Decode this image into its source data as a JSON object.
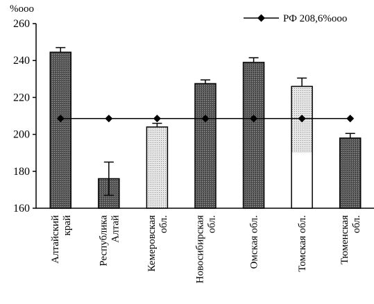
{
  "chart_data": {
    "type": "bar",
    "ylabel": "%ooo",
    "ylim": [
      160,
      260
    ],
    "yticks": [
      "160",
      "180",
      "200",
      "220",
      "240",
      "260"
    ],
    "categories": [
      [
        "Алтайский",
        "край"
      ],
      [
        "Республика",
        "Алтай"
      ],
      [
        "Кемеровская",
        "обл."
      ],
      [
        "Новосибирская",
        "обл."
      ],
      [
        "Омская обл."
      ],
      [
        "Томская обл."
      ],
      [
        "Тюменская",
        "обл."
      ]
    ],
    "series": [
      {
        "values": [
          244.5,
          176,
          204,
          227.5,
          239,
          226,
          198
        ],
        "errors": [
          2.5,
          9,
          2,
          2,
          2.5,
          4.5,
          2.5
        ],
        "fills": [
          "dark",
          "dark",
          "light",
          "dark",
          "dark",
          "light-white",
          "dark"
        ]
      },
      {
        "name": "РФ 208,6%ooo",
        "type": "line",
        "values": [
          208.6,
          208.6,
          208.6,
          208.6,
          208.6,
          208.6,
          208.6
        ]
      }
    ],
    "legend": {
      "position": "top-right",
      "label": "РФ 208,6%ooo"
    },
    "grid": false
  }
}
